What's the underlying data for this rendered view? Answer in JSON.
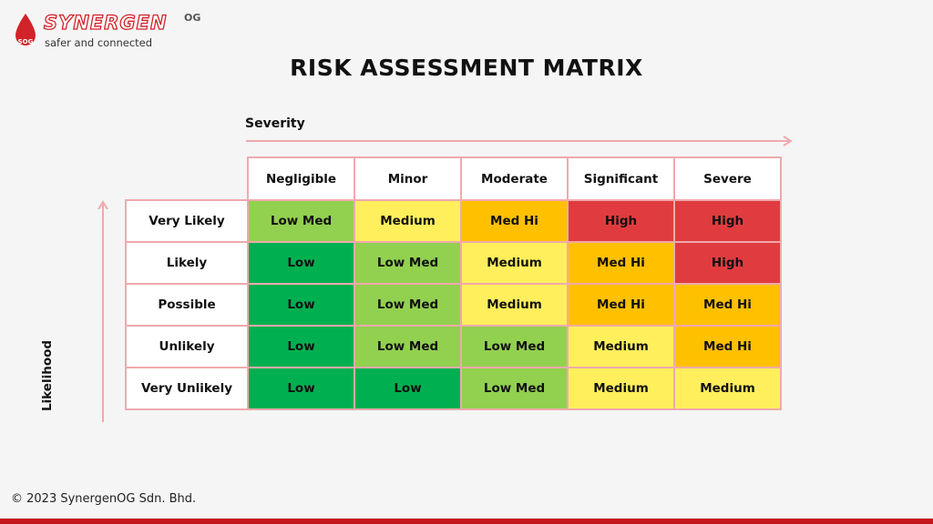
{
  "brand": {
    "name": "SYNERGEN",
    "suffix": "OG",
    "drop_text": "SOG",
    "tagline": "safer and connected"
  },
  "title": "RISK ASSESSMENT MATRIX",
  "axes": {
    "severity": "Severity",
    "likelihood": "Likelihood"
  },
  "columns": [
    "Negligible",
    "Minor",
    "Moderate",
    "Significant",
    "Severe"
  ],
  "rows": [
    {
      "label": "Very Likely",
      "cells": [
        {
          "text": "Low Med",
          "level": "lowmed"
        },
        {
          "text": "Medium",
          "level": "medium"
        },
        {
          "text": "Med Hi",
          "level": "medhi"
        },
        {
          "text": "High",
          "level": "high"
        },
        {
          "text": "High",
          "level": "high"
        }
      ]
    },
    {
      "label": "Likely",
      "cells": [
        {
          "text": "Low",
          "level": "low"
        },
        {
          "text": "Low Med",
          "level": "lowmed"
        },
        {
          "text": "Medium",
          "level": "medium"
        },
        {
          "text": "Med Hi",
          "level": "medhi"
        },
        {
          "text": "High",
          "level": "high"
        }
      ]
    },
    {
      "label": "Possible",
      "cells": [
        {
          "text": "Low",
          "level": "low"
        },
        {
          "text": "Low Med",
          "level": "lowmed"
        },
        {
          "text": "Medium",
          "level": "medium"
        },
        {
          "text": "Med Hi",
          "level": "medhi"
        },
        {
          "text": "Med Hi",
          "level": "medhi"
        }
      ]
    },
    {
      "label": "Unlikely",
      "cells": [
        {
          "text": "Low",
          "level": "low"
        },
        {
          "text": "Low Med",
          "level": "lowmed"
        },
        {
          "text": "Low Med",
          "level": "lowmed"
        },
        {
          "text": "Medium",
          "level": "medium"
        },
        {
          "text": "Med Hi",
          "level": "medhi"
        }
      ]
    },
    {
      "label": "Very Unlikely",
      "cells": [
        {
          "text": "Low",
          "level": "low"
        },
        {
          "text": "Low",
          "level": "low"
        },
        {
          "text": "Low Med",
          "level": "lowmed"
        },
        {
          "text": "Medium",
          "level": "medium"
        },
        {
          "text": "Medium",
          "level": "medium"
        }
      ]
    }
  ],
  "colors": {
    "brand_red": "#d2232a",
    "grid_border": "#f0a9ad",
    "low": "#00b050",
    "lowmed": "#92d050",
    "medium": "#ffef5c",
    "medhi": "#ffc000",
    "high": "#e03c3f"
  },
  "footer": {
    "copyright_symbol": "©",
    "copyright": "2023 SynergenOG Sdn. Bhd."
  }
}
